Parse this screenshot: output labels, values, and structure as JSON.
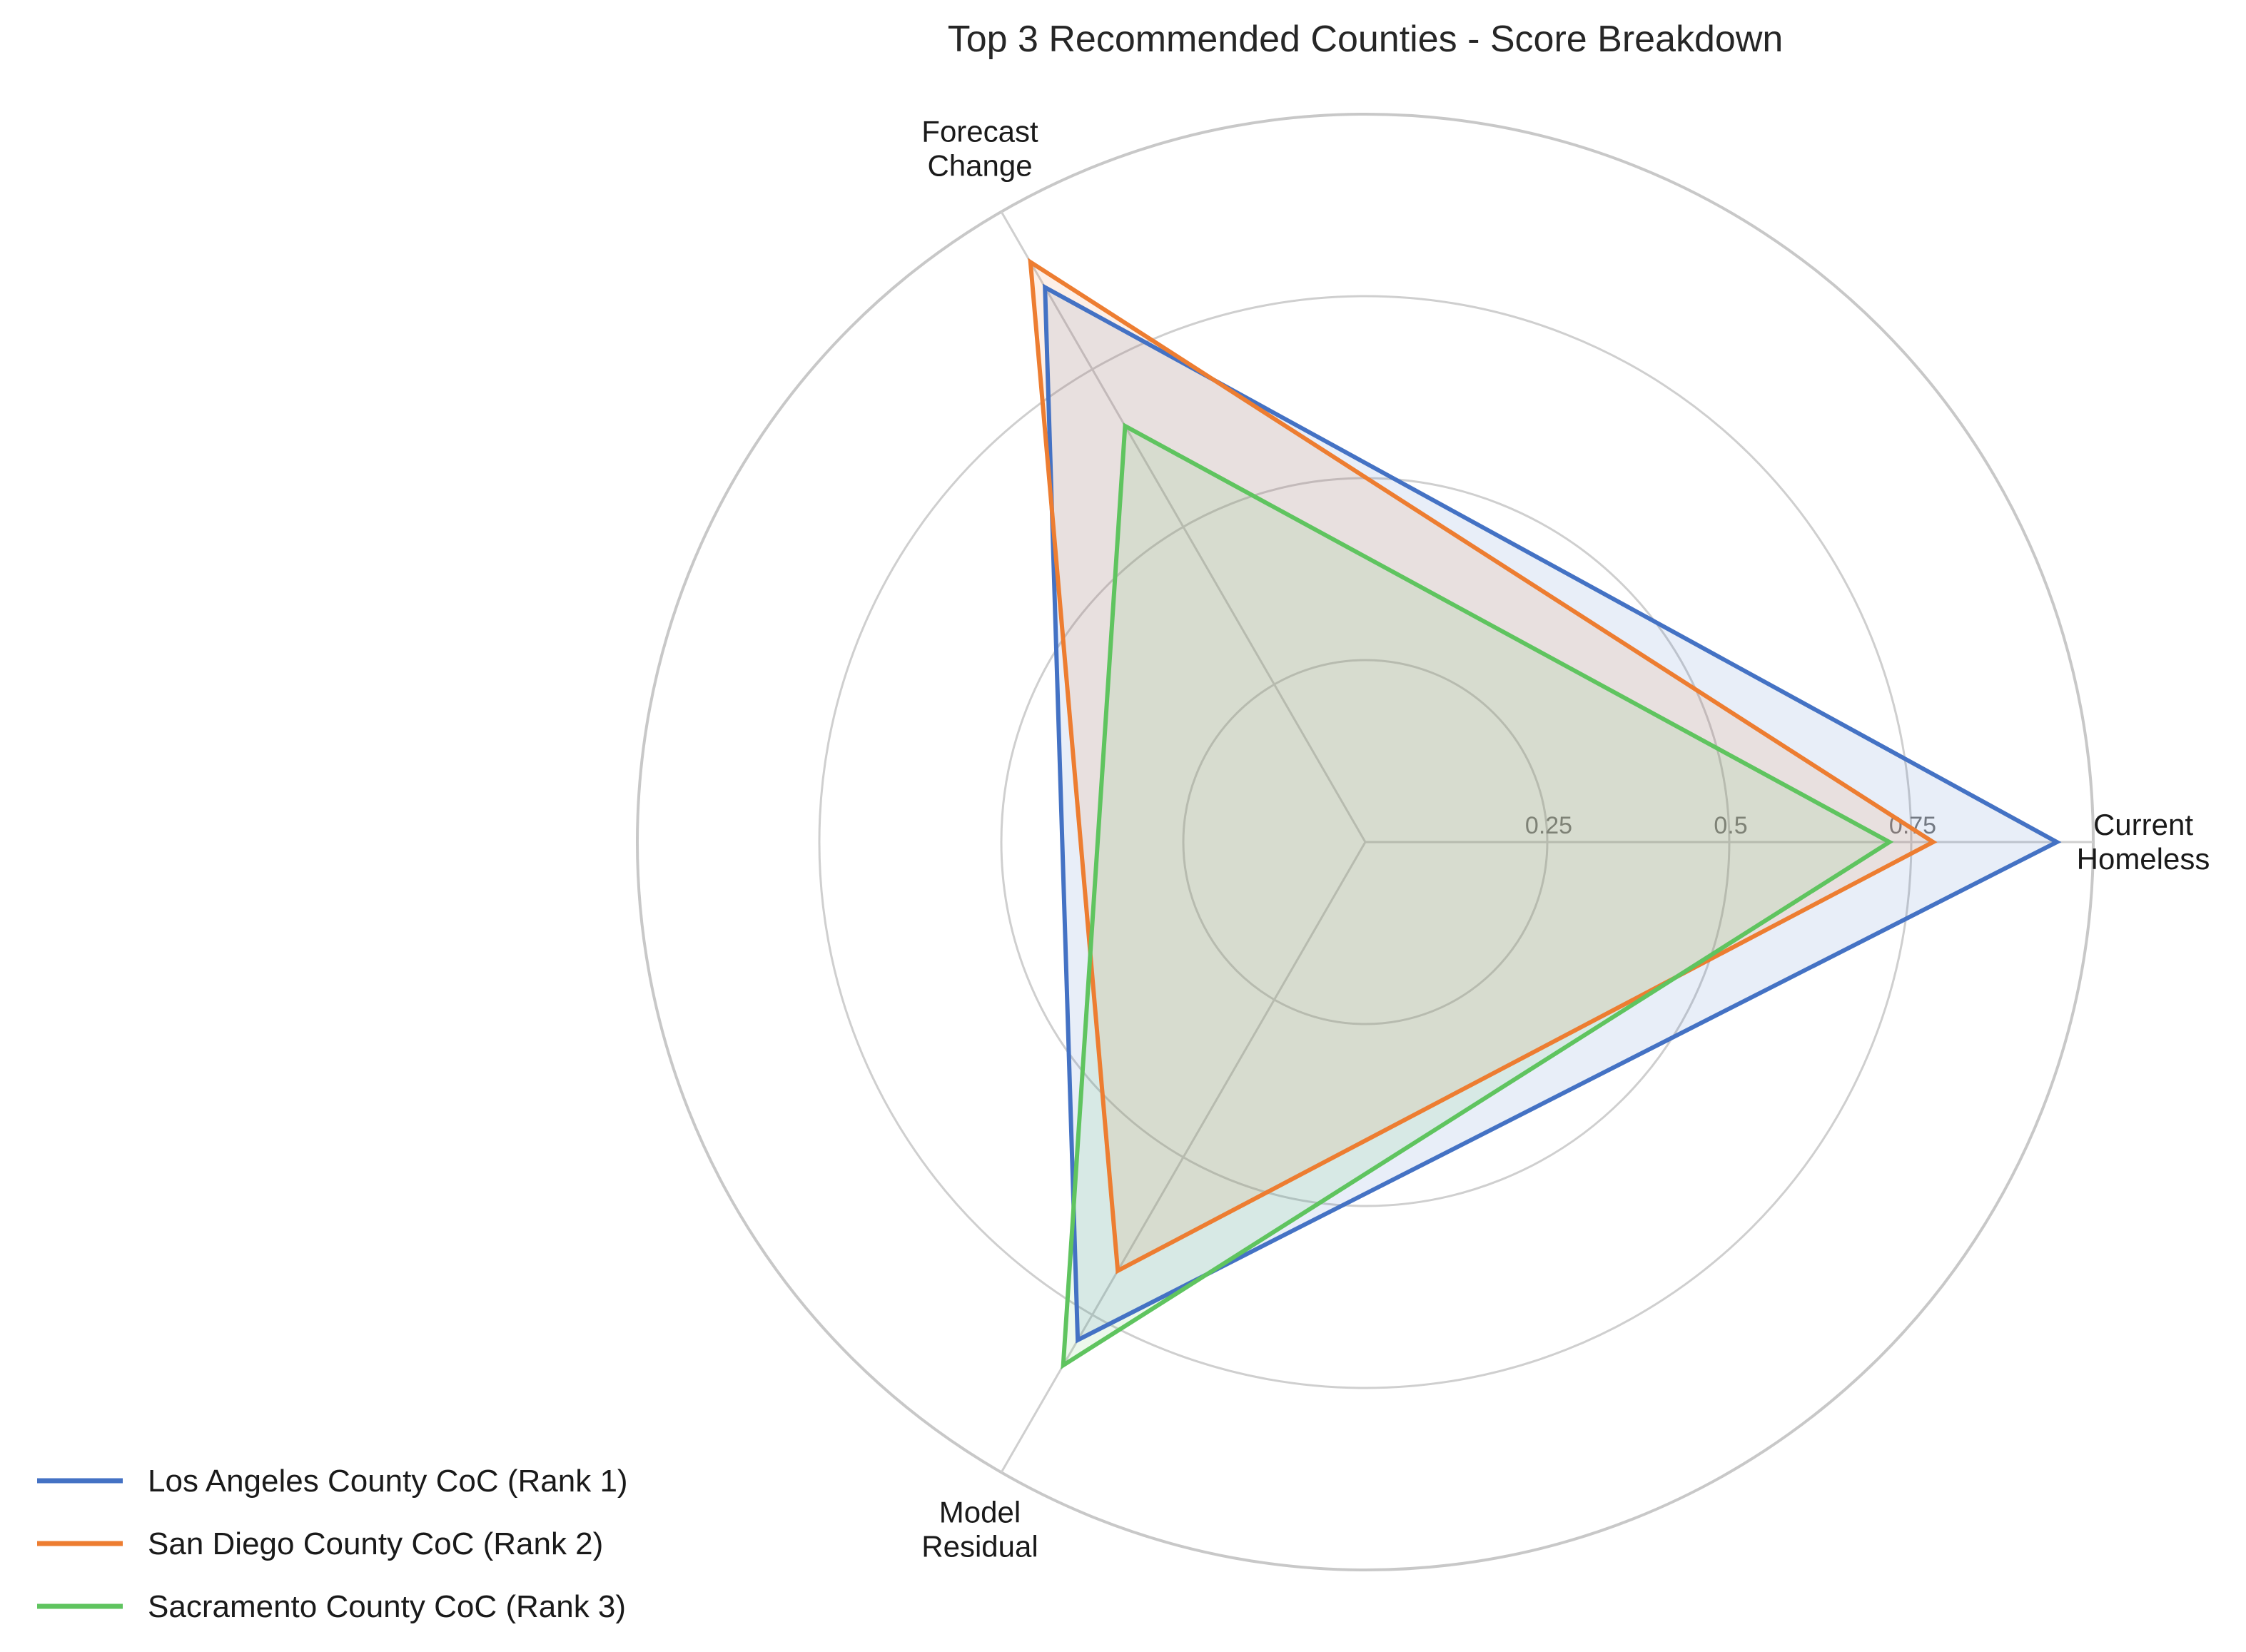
{
  "chart_data": {
    "type": "radar",
    "title": "Top 3 Recommended Counties - Score Breakdown",
    "axes": [
      "Current\nHomeless",
      "Forecast\nChange",
      "Model\nResidual"
    ],
    "radial_ticks": [
      "0.25",
      "0.5",
      "0.75"
    ],
    "radial_tick_values": [
      0.25,
      0.5,
      0.75
    ],
    "rlim": [
      0,
      1
    ],
    "grid": true,
    "legend_position": "lower-left",
    "series": [
      {
        "name": "Los Angeles County CoC (Rank 1)",
        "values": [
          0.95,
          0.88,
          0.79
        ],
        "color": "#4472c4"
      },
      {
        "name": "San Diego County CoC (Rank 2)",
        "values": [
          0.78,
          0.92,
          0.68
        ],
        "color": "#ed7d31"
      },
      {
        "name": "Sacramento County CoC (Rank 3)",
        "values": [
          0.72,
          0.66,
          0.83
        ],
        "color": "#5fc45f"
      }
    ]
  }
}
